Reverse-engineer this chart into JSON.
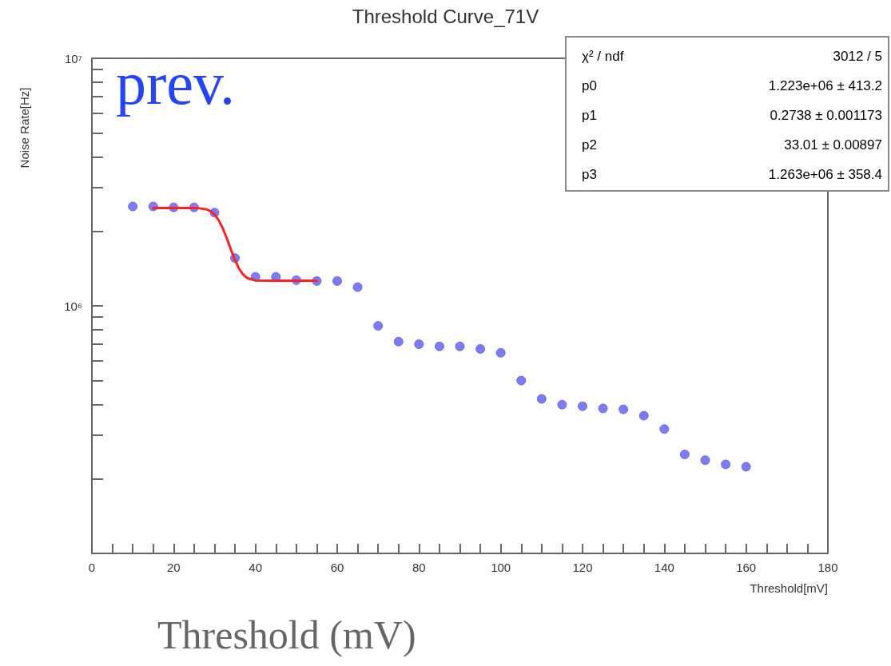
{
  "chart_data": {
    "type": "scatter",
    "title": "Threshold Curve_71V",
    "xlabel": "Threshold[mV]",
    "ylabel": "Noise Rate[Hz]",
    "annotations": [
      "prev.",
      "χ² / ndf",
      "3012 / 5",
      "p0",
      "1.223e+06 ± 413.2",
      "p1",
      "0.2738 ± 0.001173",
      "p2",
      "33.01 ± 0.00897",
      "p3",
      "1.263e+06 ± 358.4",
      "Threshold (mV)"
    ],
    "series": [
      {
        "color": "#5050f0",
        "marker": "circle",
        "x": [
          10,
          15,
          20,
          25,
          30,
          35,
          40,
          45,
          50,
          55,
          60,
          65,
          70,
          75,
          80,
          85,
          90,
          95,
          100,
          105,
          110,
          115,
          120,
          125,
          130,
          135,
          140,
          145,
          150,
          155,
          160
        ],
        "values": [
          2520000,
          2520000,
          2500000,
          2500000,
          2380000,
          1560000,
          1310000,
          1310000,
          1270000,
          1260000,
          1260000,
          1190000,
          830000,
          717000,
          700000,
          686000,
          686000,
          670000,
          646000,
          499000,
          421000,
          399000,
          393000,
          385000,
          382000,
          360000,
          318000,
          251000,
          238000,
          229000,
          224000
        ]
      },
      {
        "type": "line",
        "color": "#ff2020",
        "marker": "none",
        "x": [
          15,
          20,
          25,
          26,
          28,
          29,
          30,
          31,
          32,
          33,
          34,
          35,
          36,
          37,
          38,
          40,
          45,
          50,
          55
        ],
        "values": [
          2486000,
          2486000,
          2485000,
          2482000,
          2454000,
          2412000,
          2337000,
          2219000,
          2060000,
          1874000,
          1689000,
          1530000,
          1412000,
          1337000,
          1295000,
          1267000,
          1263000,
          1263000,
          1263000
        ]
      }
    ],
    "log": "y",
    "xlim": [
      0,
      180
    ],
    "ylim": [
      100000,
      10000000
    ],
    "xticks": [
      0,
      {
        "value": 5,
        "label": null
      },
      {
        "value": 10,
        "label": null
      },
      {
        "value": 15,
        "label": null
      },
      20,
      {
        "value": 25,
        "label": null
      },
      {
        "value": 30,
        "label": null
      },
      {
        "value": 35,
        "label": null
      },
      40,
      {
        "value": 45,
        "label": null
      },
      {
        "value": 50,
        "label": null
      },
      {
        "value": 55,
        "label": null
      },
      60,
      {
        "value": 65,
        "label": null
      },
      {
        "value": 70,
        "label": null
      },
      {
        "value": 75,
        "label": null
      },
      80,
      {
        "value": 85,
        "label": null
      },
      {
        "value": 90,
        "label": null
      },
      {
        "value": 95,
        "label": null
      },
      100,
      {
        "value": 105,
        "label": null
      },
      {
        "value": 110,
        "label": null
      },
      {
        "value": 115,
        "label": null
      },
      120,
      {
        "value": 125,
        "label": null
      },
      {
        "value": 130,
        "label": null
      },
      {
        "value": 135,
        "label": null
      },
      140,
      {
        "value": 145,
        "label": null
      },
      {
        "value": 150,
        "label": null
      },
      {
        "value": 155,
        "label": null
      },
      160,
      {
        "value": 165,
        "label": null
      },
      {
        "value": 170,
        "label": null
      },
      {
        "value": 175,
        "label": null
      },
      180
    ],
    "yticks": [
      {
        "value": 200000,
        "label": null
      },
      {
        "value": 300000,
        "label": null
      },
      {
        "value": 400000,
        "label": null
      },
      {
        "value": 500000,
        "label": null
      },
      {
        "value": 600000,
        "label": null
      },
      {
        "value": 700000,
        "label": null
      },
      {
        "value": 800000,
        "label": null
      },
      {
        "value": 900000,
        "label": null
      },
      {
        "value": 1000000,
        "label": "10⁶"
      },
      {
        "value": 2000000,
        "label": null
      },
      {
        "value": 3000000,
        "label": null
      },
      {
        "value": 4000000,
        "label": null
      },
      {
        "value": 5000000,
        "label": null
      },
      {
        "value": 6000000,
        "label": null
      },
      {
        "value": 7000000,
        "label": null
      },
      {
        "value": 8000000,
        "label": null
      },
      {
        "value": 9000000,
        "label": null
      },
      {
        "value": 10000000,
        "label": "10⁷"
      }
    ],
    "grid": false
  }
}
